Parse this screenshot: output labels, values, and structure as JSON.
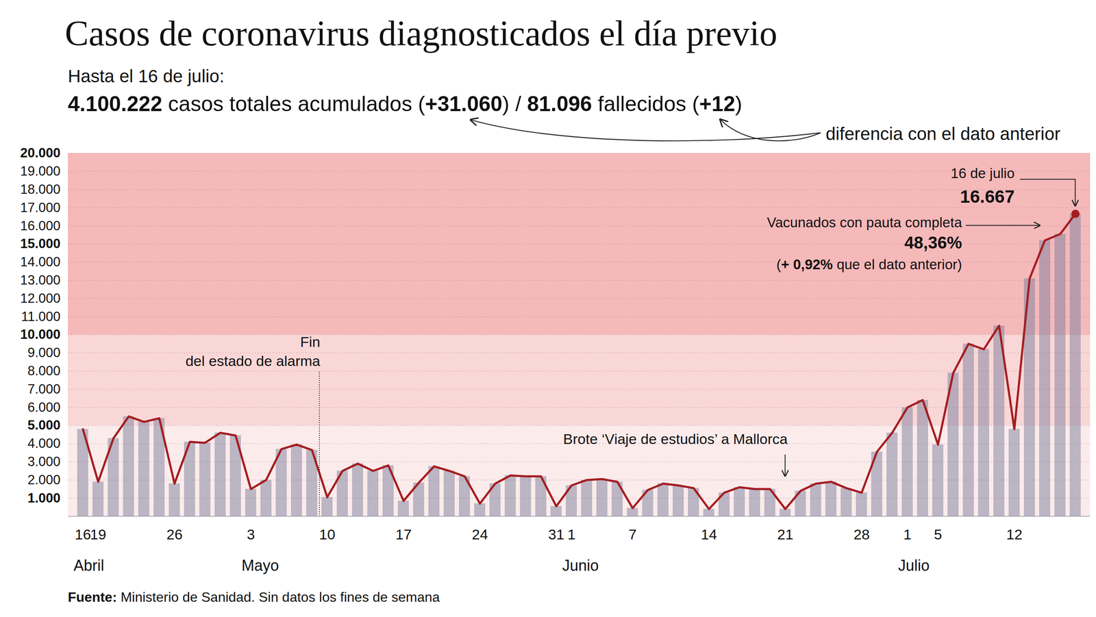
{
  "chart_data": {
    "type": "bar",
    "title": "Casos de coronavirus diagnosticados el día previo",
    "subtitle": "Hasta el 16 de julio:",
    "summary": [
      "4.100.222",
      " casos totales acumulados (",
      "+31.060",
      ") / ",
      "81.096",
      " fallecidos (",
      "+12",
      ")"
    ],
    "summary_note": "diferencia con el dato anterior",
    "source": [
      "Fuente:",
      " Ministerio de Sanidad. Sin datos los fines de semana"
    ],
    "categories": [
      "16",
      "19",
      null,
      null,
      null,
      null,
      "26",
      null,
      null,
      null,
      null,
      "3",
      null,
      null,
      null,
      null,
      "10",
      null,
      null,
      null,
      null,
      "17",
      null,
      null,
      null,
      null,
      "24",
      null,
      null,
      null,
      null,
      "31",
      "1",
      null,
      null,
      null,
      "7",
      null,
      null,
      null,
      null,
      "14",
      null,
      null,
      null,
      null,
      "21",
      null,
      null,
      null,
      null,
      "28",
      null,
      null,
      "1",
      null,
      "5",
      null,
      null,
      null,
      null,
      "12",
      null,
      null,
      null,
      null
    ],
    "months": [
      "Abril",
      null,
      null,
      null,
      null,
      null,
      null,
      null,
      null,
      null,
      null,
      "Mayo",
      null,
      null,
      null,
      null,
      null,
      null,
      null,
      null,
      null,
      null,
      null,
      null,
      null,
      null,
      null,
      null,
      null,
      null,
      null,
      null,
      "Junio",
      null,
      null,
      null,
      null,
      null,
      null,
      null,
      null,
      null,
      null,
      null,
      null,
      null,
      null,
      null,
      null,
      null,
      null,
      null,
      null,
      null,
      "Julio",
      null,
      null,
      null,
      null,
      null,
      null,
      null,
      null,
      null,
      null,
      null
    ],
    "series": [
      {
        "type": "bar",
        "color": "#7c7f9e",
        "values": [
          4800,
          1900,
          4300,
          5500,
          5200,
          5400,
          1800,
          4100,
          4050,
          4600,
          4450,
          1500,
          2000,
          3700,
          3950,
          3650,
          1050,
          2500,
          2900,
          2500,
          2800,
          850,
          1850,
          2750,
          2500,
          2200,
          700,
          1800,
          2250,
          2200,
          2200,
          550,
          1700,
          2000,
          2050,
          1900,
          450,
          1450,
          1800,
          1700,
          1550,
          400,
          1300,
          1600,
          1500,
          1500,
          400,
          1400,
          1800,
          1900,
          1550,
          1300,
          3550,
          4600,
          6000,
          6400,
          3950,
          7900,
          9500,
          9200,
          10500,
          4800,
          13100,
          15200,
          15550,
          16667
        ]
      },
      {
        "type": "line",
        "color": "#a41e22",
        "values": [
          4800,
          1900,
          4300,
          5500,
          5200,
          5400,
          1800,
          4100,
          4050,
          4600,
          4450,
          1500,
          2000,
          3700,
          3950,
          3650,
          1050,
          2500,
          2900,
          2500,
          2800,
          850,
          1850,
          2750,
          2500,
          2200,
          700,
          1800,
          2250,
          2200,
          2200,
          550,
          1700,
          2000,
          2050,
          1900,
          450,
          1450,
          1800,
          1700,
          1550,
          400,
          1300,
          1600,
          1500,
          1500,
          400,
          1400,
          1800,
          1900,
          1550,
          1300,
          3550,
          4600,
          6000,
          6400,
          3950,
          7900,
          9500,
          9200,
          10500,
          4800,
          13100,
          15200,
          15550,
          16667
        ],
        "value_labels": [
          null,
          null,
          null,
          null,
          null,
          null,
          null,
          null,
          null,
          null,
          null,
          null,
          null,
          null,
          null,
          null,
          null,
          null,
          null,
          null,
          null,
          null,
          null,
          null,
          null,
          null,
          null,
          null,
          null,
          null,
          null,
          null,
          null,
          null,
          null,
          null,
          null,
          null,
          null,
          null,
          null,
          null,
          null,
          null,
          null,
          null,
          null,
          null,
          null,
          null,
          null,
          null,
          null,
          null,
          null,
          null,
          null,
          null,
          null,
          null,
          null,
          null,
          null,
          null,
          null,
          "16.667"
        ]
      }
    ],
    "ylim": [
      0,
      20000
    ],
    "yticks": [
      {
        "value": 1000,
        "label": "1.000"
      },
      {
        "value": 2000,
        "label": "2.000"
      },
      {
        "value": 3000,
        "label": "3.000"
      },
      {
        "value": 4000,
        "label": "4.000"
      },
      {
        "value": 5000,
        "label": "5.000"
      },
      {
        "value": 6000,
        "label": "6.000"
      },
      {
        "value": 7000,
        "label": "7.000"
      },
      {
        "value": 8000,
        "label": "8.000"
      },
      {
        "value": 9000,
        "label": "9.000"
      },
      {
        "value": 10000,
        "label": "10.000"
      },
      {
        "value": 11000,
        "label": "11.000"
      },
      {
        "value": 12000,
        "label": "12.000"
      },
      {
        "value": 13000,
        "label": "13.000"
      },
      {
        "value": 14000,
        "label": "14.000"
      },
      {
        "value": 15000,
        "label": "15.000"
      },
      {
        "value": 16000,
        "label": "16.000"
      },
      {
        "value": 17000,
        "label": "17.000"
      },
      {
        "value": 18000,
        "label": "18.000"
      },
      {
        "value": 19000,
        "label": "19.000"
      },
      {
        "value": 20000,
        "label": "20.000"
      }
    ],
    "grid": true,
    "bands": [
      {
        "from": 0,
        "to": 5000,
        "color": "#fbebeb"
      },
      {
        "from": 5000,
        "to": 10000,
        "color": "#fad7d7"
      },
      {
        "from": 10000,
        "to": 15000,
        "color": "#f5b9ba"
      },
      {
        "from": 15000,
        "to": 20000,
        "color": "#f5b9ba"
      }
    ],
    "annotations": [
      {
        "text": [
          "Fin",
          "del estado de alarma"
        ],
        "after_index": 15
      },
      {
        "text": [
          "Brote ‘Viaje de estudios’ a Mallorca"
        ],
        "index": 46
      },
      {
        "text": [
          "16 de julio"
        ],
        "index": 65
      },
      {
        "text": [
          "Vacunados con pauta completa"
        ],
        "index": 64,
        "value": "48,36%",
        "note": [
          "(",
          "+ 0,92%",
          " que el dato anterior)"
        ]
      }
    ]
  }
}
